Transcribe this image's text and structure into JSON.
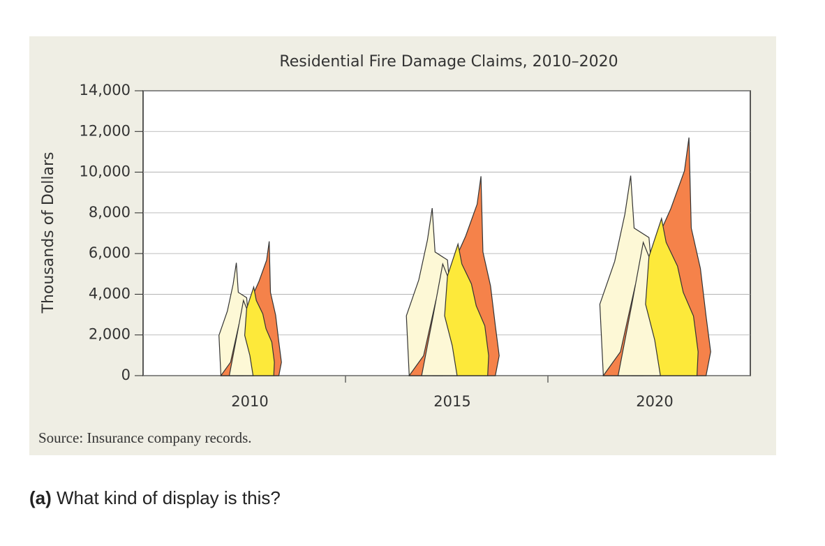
{
  "chart_data": {
    "type": "pictograph",
    "title": "Residential Fire Damage Claims, 2010–2020",
    "y_label": "Thousands of Dollars",
    "source": "Source: Insurance company records.",
    "categories": [
      "2010",
      "2015",
      "2020"
    ],
    "values": [
      6600,
      9800,
      11700
    ],
    "colors": [
      "#fdf8d6",
      "#f5824a",
      "#fde93a"
    ],
    "ylim": [
      0,
      14000
    ],
    "yticks": [
      0,
      {
        "value": 2000,
        "label": "2,000"
      },
      {
        "value": 4000,
        "label": "4,000"
      },
      {
        "value": 6000,
        "label": "6,000"
      },
      {
        "value": 8000,
        "label": "8,000"
      },
      {
        "value": 10000,
        "label": "10,000"
      },
      {
        "value": 12000,
        "label": "12,000"
      },
      {
        "value": 14000,
        "label": "14,000"
      }
    ],
    "grid": true
  },
  "question": {
    "label": "(a)",
    "text": "What kind of display is this?"
  }
}
